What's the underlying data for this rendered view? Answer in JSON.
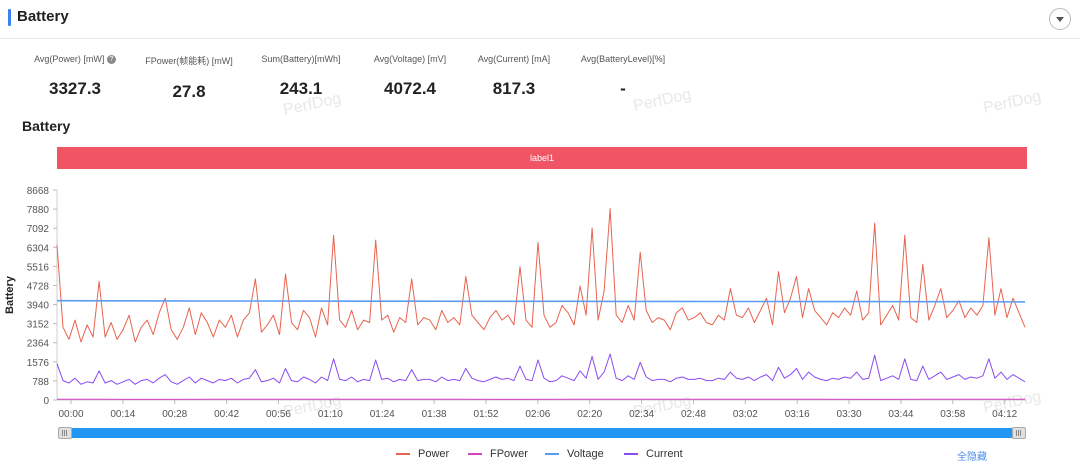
{
  "header": {
    "title": "Battery"
  },
  "metrics": [
    {
      "label": "Avg(Power) [mW]",
      "value": "3327.3"
    },
    {
      "label": "FPower(帧能耗) [mW]",
      "value": "27.8"
    },
    {
      "label": "Sum(Battery)[mWh]",
      "value": "243.1"
    },
    {
      "label": "Avg(Voltage) [mV]",
      "value": "4072.4"
    },
    {
      "label": "Avg(Current) [mA]",
      "value": "817.3"
    },
    {
      "label": "Avg(BatteryLevel)[%]",
      "value": "-"
    }
  ],
  "watermark": "PerfDog",
  "section_title": "Battery",
  "label_band": "label1",
  "legend_hide_all": "全隐藏",
  "colors": {
    "accent": "#3b82f6",
    "power": "#e8634f",
    "fpower": "#d43fc4",
    "voltage": "#5b9cf0",
    "current": "#8a4cf0",
    "label_band": "#ef5565",
    "slider": "#2196f3"
  },
  "icons": {
    "help": "question-circle-icon",
    "collapse": "chevron-down-icon"
  },
  "chart_data": {
    "type": "line",
    "ylabel": "Battery",
    "ylim": [
      0,
      8668
    ],
    "yticks": [
      "8668",
      "7880",
      "7092",
      "6304",
      "5516",
      "4728",
      "3940",
      "3152",
      "2364",
      "1576",
      "788",
      "0"
    ],
    "xticks": [
      "00:00",
      "00:14",
      "00:28",
      "00:42",
      "00:56",
      "01:10",
      "01:24",
      "01:38",
      "01:52",
      "02:06",
      "02:20",
      "02:34",
      "02:48",
      "03:02",
      "03:16",
      "03:30",
      "03:44",
      "03:58",
      "04:12"
    ],
    "x_start": "00:00",
    "x_end": "04:22",
    "series": [
      {
        "name": "Power",
        "values": [
          6400,
          3000,
          2500,
          3300,
          2400,
          3100,
          2600,
          4900,
          2600,
          3200,
          2500,
          2900,
          3500,
          2400,
          3000,
          3300,
          2700,
          3600,
          4200,
          2900,
          2500,
          3000,
          3800,
          2700,
          3600,
          3200,
          2600,
          3300,
          3000,
          3500,
          2600,
          3300,
          3600,
          5000,
          2800,
          3100,
          3500,
          2700,
          5200,
          3200,
          2900,
          3700,
          3400,
          2600,
          3800,
          3100,
          6800,
          3300,
          3000,
          3700,
          2900,
          3300,
          3200,
          6600,
          3300,
          3500,
          2800,
          3400,
          3200,
          5000,
          3100,
          3400,
          3300,
          2900,
          3700,
          3200,
          3400,
          3100,
          5100,
          3500,
          3200,
          2900,
          3400,
          3700,
          3300,
          3500,
          3100,
          5500,
          3300,
          3000,
          6500,
          3500,
          3000,
          3200,
          3900,
          3600,
          3100,
          4700,
          3500,
          7100,
          3300,
          4500,
          7900,
          3500,
          3200,
          3900,
          3300,
          6100,
          3700,
          3200,
          3400,
          3300,
          2900,
          3600,
          3800,
          3300,
          3400,
          3600,
          3200,
          3100,
          3500,
          3300,
          4600,
          3500,
          3400,
          3800,
          3200,
          3700,
          4200,
          3100,
          5300,
          3600,
          4200,
          5100,
          3400,
          4600,
          3700,
          3400,
          3100,
          3600,
          3400,
          3800,
          3500,
          4500,
          3300,
          3600,
          7300,
          3100,
          3500,
          3900,
          3300,
          6800,
          3400,
          3200,
          5600,
          3300,
          3900,
          4600,
          3400,
          3700,
          4100,
          3400,
          3800,
          3500,
          3900,
          6700,
          3500,
          4600,
          3400,
          4200,
          3600,
          3000
        ],
        "stats_avg": 3327.3
      },
      {
        "name": "FPower",
        "values": [
          30,
          28,
          26,
          27,
          29,
          28,
          27,
          28,
          27,
          26,
          28,
          29,
          27,
          28,
          28,
          27,
          26,
          29,
          28,
          28
        ],
        "stats_avg": 27.8
      },
      {
        "name": "Voltage",
        "values": [
          4100,
          4095,
          4090,
          4088,
          4085,
          4082,
          4080,
          4078,
          4076,
          4074,
          4072,
          4070,
          4068,
          4066,
          4064,
          4062,
          4060,
          4058,
          4056,
          4050
        ],
        "stats_avg": 4072.4
      },
      {
        "name": "Current",
        "values": [
          1500,
          800,
          700,
          900,
          650,
          750,
          700,
          1200,
          700,
          800,
          650,
          750,
          850,
          650,
          800,
          850,
          700,
          900,
          1050,
          750,
          650,
          800,
          950,
          700,
          900,
          800,
          700,
          850,
          800,
          900,
          700,
          850,
          900,
          1250,
          750,
          800,
          900,
          700,
          1300,
          800,
          750,
          950,
          850,
          700,
          950,
          800,
          1700,
          850,
          800,
          950,
          750,
          850,
          800,
          1650,
          850,
          900,
          750,
          850,
          800,
          1250,
          800,
          850,
          850,
          750,
          950,
          800,
          850,
          800,
          1300,
          900,
          800,
          750,
          850,
          950,
          850,
          900,
          800,
          1400,
          850,
          800,
          1650,
          900,
          750,
          800,
          1000,
          900,
          800,
          1200,
          900,
          1800,
          850,
          1150,
          1900,
          900,
          800,
          1000,
          850,
          1550,
          950,
          800,
          850,
          850,
          750,
          900,
          950,
          850,
          850,
          900,
          800,
          800,
          900,
          850,
          1150,
          900,
          850,
          950,
          800,
          950,
          1050,
          800,
          1350,
          900,
          1050,
          1300,
          850,
          1150,
          950,
          850,
          800,
          900,
          850,
          950,
          900,
          1150,
          850,
          900,
          1850,
          800,
          900,
          1000,
          850,
          1700,
          850,
          800,
          1400,
          850,
          1000,
          1150,
          850,
          950,
          1050,
          850,
          950,
          900,
          1000,
          1700,
          900,
          1150,
          850,
          1050,
          900,
          750
        ],
        "stats_avg": 817.3
      }
    ],
    "legend": [
      "Power",
      "FPower",
      "Voltage",
      "Current"
    ],
    "legend_position": "bottom-center",
    "grid": false
  }
}
